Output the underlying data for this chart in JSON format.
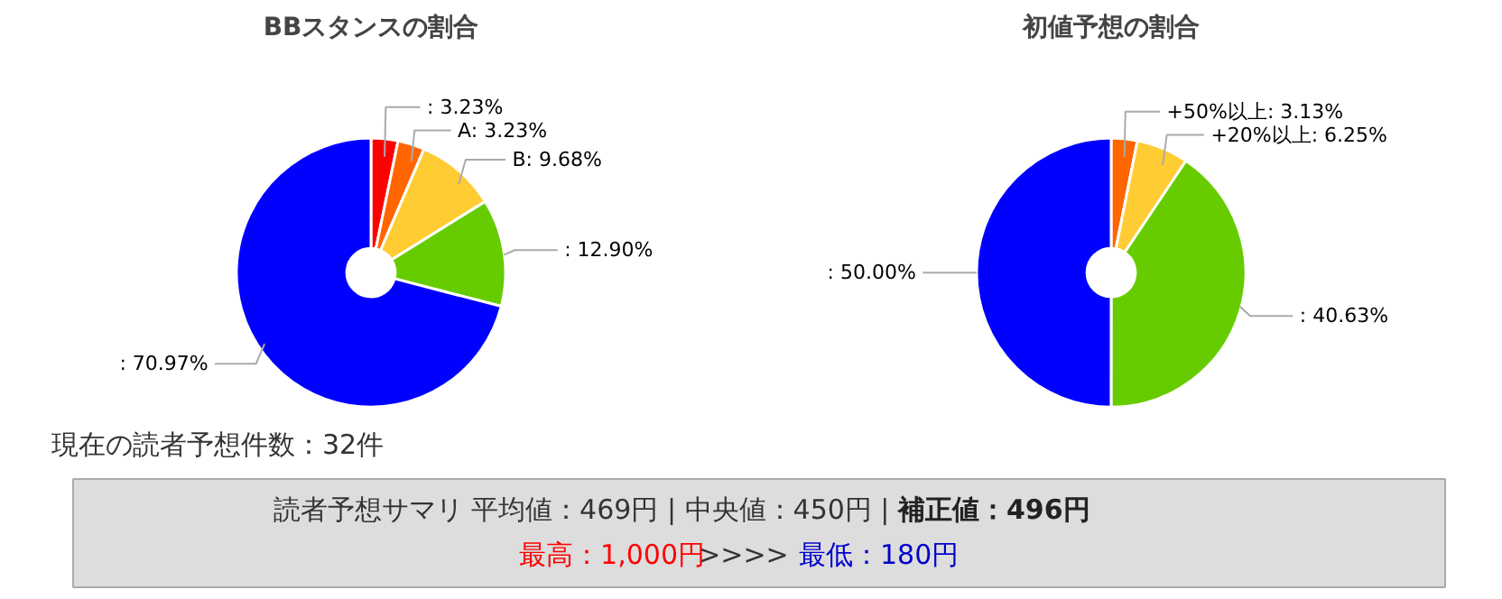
{
  "chart_data": [
    {
      "type": "donut",
      "title": "BBスタンスの割合",
      "categories": [
        null,
        "A",
        "B",
        null,
        null
      ],
      "values": [
        3.23,
        3.23,
        9.68,
        12.9,
        70.97
      ],
      "colors": [
        "#ff0000",
        "#ff6600",
        "#ffcc33",
        "#66cc00",
        "#0000ff"
      ],
      "value_labels": [
        ": 3.23%",
        ": 3.23%",
        ": 9.68%",
        ": 12.90%",
        ": 70.97%"
      ]
    },
    {
      "type": "donut",
      "title": "初値予想の割合",
      "categories": [
        "+50%以上",
        "+20%以上",
        null,
        null
      ],
      "values": [
        3.13,
        6.25,
        40.63,
        50.0
      ],
      "colors": [
        "#ff6600",
        "#ffcc33",
        "#66cc00",
        "#0000ff"
      ],
      "value_labels": [
        ": 3.13%",
        ": 6.25%",
        ": 40.63%",
        ": 50.00%"
      ]
    },
    {
      "type": "other",
      "annotations": [
        "現在の読者予想件数：32件",
        "読者予想サマリ 平均値：469円 | 中央値：450円 | ",
        "補正値：496円",
        "最高：1,000円",
        " >>>> ",
        "最低：180円"
      ]
    }
  ]
}
